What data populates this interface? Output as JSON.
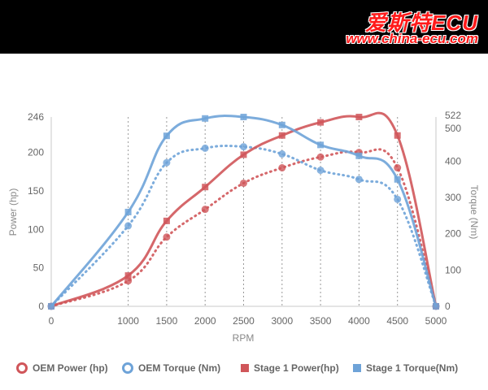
{
  "logo": {
    "chinese": "爱斯特ECU",
    "url": "www.china-ecu.com"
  },
  "colors": {
    "red": "#d0565a",
    "blue": "#6ea3d8"
  },
  "chart_data": {
    "type": "line",
    "xlabel": "RPM",
    "ylabel_left": "Power (hp)",
    "ylabel_right": "Torque (Nm)",
    "x": [
      0,
      1000,
      1500,
      2000,
      2500,
      3000,
      3500,
      4000,
      4500,
      5000
    ],
    "xlim": [
      0,
      5000
    ],
    "ylim_left": [
      0,
      246
    ],
    "ylim_right": [
      0,
      522
    ],
    "left_ticks": [
      0,
      50,
      100,
      150,
      200,
      246
    ],
    "right_ticks": [
      0,
      100,
      200,
      300,
      400,
      500,
      522
    ],
    "x_ticks": [
      0,
      1000,
      1500,
      2000,
      2500,
      3000,
      3500,
      4000,
      4500,
      5000
    ],
    "grid": "vertical dotted",
    "legend_position": "bottom",
    "series": [
      {
        "name": "OEM Power (hp)",
        "axis": "left",
        "style": "dotted",
        "marker": "circle",
        "color": "#d0565a",
        "values": [
          0,
          33,
          90,
          126,
          160,
          180,
          194,
          200,
          180,
          0
        ]
      },
      {
        "name": "OEM Torque (Nm)",
        "axis": "right",
        "style": "dotted",
        "marker": "circle",
        "color": "#6ea3d8",
        "values": [
          0,
          222,
          396,
          436,
          440,
          420,
          375,
          350,
          295,
          0
        ]
      },
      {
        "name": "Stage 1 Power(hp)",
        "axis": "left",
        "style": "solid",
        "marker": "square",
        "color": "#d0565a",
        "values": [
          0,
          40,
          111,
          155,
          197,
          222,
          239,
          246,
          222,
          0
        ]
      },
      {
        "name": "Stage 1 Torque(Nm)",
        "axis": "right",
        "style": "solid",
        "marker": "square",
        "color": "#6ea3d8",
        "values": [
          0,
          260,
          470,
          518,
          522,
          500,
          445,
          415,
          350,
          0
        ]
      }
    ]
  }
}
